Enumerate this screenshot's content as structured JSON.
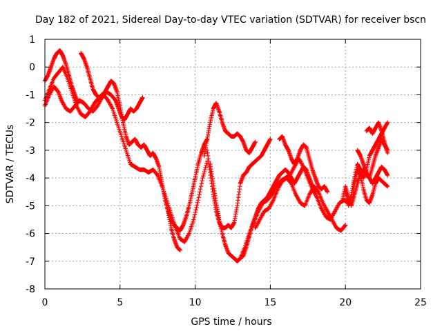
{
  "chart_data": {
    "type": "scatter",
    "title": "Day 182 of 2021, Sidereal Day-to-day VTEC variation (SDTVAR) for receiver bscn",
    "xlabel": "GPS time / hours",
    "ylabel": "SDTVAR / TECUs",
    "xlim": [
      0,
      25
    ],
    "ylim": [
      -8,
      1
    ],
    "xticks": [
      0,
      5,
      10,
      15,
      20,
      25
    ],
    "yticks": [
      -8,
      -7,
      -6,
      -5,
      -4,
      -3,
      -2,
      -1,
      0,
      1
    ],
    "grid": true,
    "marker": "plus",
    "color": "#ff0000",
    "series": [
      {
        "x": [
          0.0,
          0.3,
          0.6,
          0.9,
          1.1,
          1.4,
          1.7,
          2.0,
          2.3,
          2.6,
          2.9,
          3.2,
          3.5,
          3.8,
          4.1,
          4.4,
          4.7,
          4.9,
          5.1,
          5.3,
          5.5,
          5.7,
          5.9,
          6.1,
          6.3,
          6.5
        ],
        "y": [
          -1.4,
          -1.0,
          -0.7,
          -0.9,
          -1.2,
          -1.5,
          -1.6,
          -1.4,
          -1.2,
          -1.3,
          -1.5,
          -1.6,
          -1.4,
          -1.1,
          -0.9,
          -1.0,
          -1.2,
          -1.5,
          -1.8,
          -1.9,
          -1.7,
          -1.5,
          -1.6,
          -1.5,
          -1.3,
          -1.1
        ]
      },
      {
        "x": [
          0.0,
          0.2,
          0.4,
          0.6,
          0.8,
          1.0,
          1.2,
          1.4,
          1.6,
          1.8,
          2.0,
          2.2
        ],
        "y": [
          -0.5,
          -0.3,
          0.0,
          0.3,
          0.5,
          0.6,
          0.4,
          0.1,
          -0.3,
          -0.7,
          -1.0,
          -1.3
        ]
      },
      {
        "x": [
          2.4,
          2.6,
          2.8,
          3.0,
          3.2,
          3.4,
          3.6,
          3.8,
          4.0,
          4.2,
          4.4,
          4.6,
          4.8,
          5.0,
          5.2,
          5.4,
          5.6,
          5.8,
          6.0,
          6.2,
          6.4,
          6.6,
          6.8,
          7.0,
          7.2,
          7.4,
          7.6,
          7.8,
          8.0,
          8.2,
          8.4,
          8.6,
          8.8,
          9.0,
          9.2,
          9.4,
          9.6,
          9.8,
          10.0,
          10.2,
          10.4,
          10.6,
          10.8
        ],
        "y": [
          0.5,
          0.3,
          0.0,
          -0.4,
          -0.8,
          -1.0,
          -1.1,
          -1.0,
          -0.9,
          -0.7,
          -0.5,
          -0.6,
          -0.9,
          -1.4,
          -2.0,
          -2.5,
          -2.8,
          -2.7,
          -2.6,
          -2.8,
          -2.9,
          -2.8,
          -3.0,
          -3.2,
          -3.1,
          -3.3,
          -3.6,
          -4.2,
          -4.8,
          -5.2,
          -5.5,
          -5.7,
          -5.8,
          -5.9,
          -5.7,
          -5.4,
          -5.0,
          -4.5,
          -4.0,
          -3.5,
          -3.1,
          -2.8,
          -2.6
        ]
      },
      {
        "x": [
          0.0,
          0.3,
          0.6,
          0.9,
          1.2,
          1.5,
          1.8,
          2.1,
          2.4,
          2.7,
          3.0,
          3.3,
          3.6,
          3.9,
          4.2,
          4.5,
          4.8,
          5.1,
          5.4,
          5.7,
          6.0,
          6.3,
          6.6,
          6.9,
          7.2,
          7.5,
          7.8,
          8.1,
          8.4,
          8.7,
          9.0,
          9.3,
          9.6,
          9.9,
          10.2,
          10.5,
          10.8
        ],
        "y": [
          -1.2,
          -0.8,
          -0.4,
          -0.2,
          0.0,
          -0.4,
          -0.9,
          -1.4,
          -1.7,
          -1.8,
          -1.6,
          -1.3,
          -1.1,
          -1.0,
          -1.2,
          -1.5,
          -2.0,
          -2.5,
          -3.0,
          -3.5,
          -3.6,
          -3.7,
          -3.7,
          -3.8,
          -3.7,
          -3.9,
          -4.3,
          -4.8,
          -5.3,
          -5.8,
          -6.2,
          -6.3,
          -6.0,
          -5.5,
          -4.8,
          -4.0,
          -3.4
        ]
      },
      {
        "x": [
          8.2,
          8.4,
          8.6,
          8.8,
          9.0
        ],
        "y": [
          -5.2,
          -5.8,
          -6.2,
          -6.5,
          -6.6
        ]
      },
      {
        "x": [
          10.6,
          10.8,
          11.0,
          11.2,
          11.4,
          11.6,
          11.8,
          12.0,
          12.2,
          12.4,
          12.6,
          12.8,
          13.0,
          13.2,
          13.4,
          13.6,
          13.8,
          14.0
        ],
        "y": [
          -3.2,
          -2.6,
          -2.0,
          -1.5,
          -1.3,
          -1.6,
          -2.0,
          -2.3,
          -2.4,
          -2.5,
          -2.5,
          -2.4,
          -2.5,
          -2.7,
          -3.0,
          -3.1,
          -2.9,
          -2.7
        ]
      },
      {
        "x": [
          10.8,
          11.0,
          11.2,
          11.4,
          11.6,
          11.8,
          12.0,
          12.2,
          12.4,
          12.6,
          12.8,
          13.0,
          13.2,
          13.4,
          13.6,
          13.8,
          14.0,
          14.2,
          14.4,
          14.6,
          14.8,
          15.0
        ],
        "y": [
          -3.0,
          -3.8,
          -4.6,
          -5.2,
          -5.6,
          -5.8,
          -5.8,
          -5.7,
          -5.8,
          -5.6,
          -5.0,
          -4.2,
          -3.9,
          -3.8,
          -3.6,
          -3.5,
          -3.4,
          -3.3,
          -3.2,
          -3.0,
          -2.8,
          -2.6
        ]
      },
      {
        "x": [
          11.0,
          11.2,
          11.4,
          11.6,
          11.8,
          12.0,
          12.2,
          12.4,
          12.6,
          12.8,
          13.0,
          13.2,
          13.4,
          13.6,
          13.8,
          14.0,
          14.2,
          14.4,
          14.6,
          14.8,
          15.0,
          15.2,
          15.4,
          15.6,
          15.8,
          16.0,
          16.2,
          16.4,
          16.6,
          16.8,
          17.0,
          17.2,
          17.4,
          17.6,
          17.8,
          18.0
        ],
        "y": [
          -3.5,
          -4.2,
          -4.9,
          -5.5,
          -6.0,
          -6.4,
          -6.7,
          -6.8,
          -6.9,
          -7.0,
          -6.9,
          -6.8,
          -6.5,
          -6.1,
          -5.7,
          -5.4,
          -5.1,
          -4.9,
          -4.8,
          -4.7,
          -4.5,
          -4.3,
          -4.1,
          -3.9,
          -3.8,
          -3.7,
          -3.8,
          -4.0,
          -4.2,
          -4.0,
          -3.8,
          -3.6,
          -3.7,
          -4.0,
          -4.3,
          -4.5
        ]
      },
      {
        "x": [
          13.0,
          13.3,
          13.6,
          13.9,
          14.2,
          14.5,
          14.8,
          15.1,
          15.4,
          15.7,
          16.0,
          16.3,
          16.6,
          16.9,
          17.2,
          17.5,
          17.8,
          18.1,
          18.4,
          18.7,
          19.0,
          19.3,
          19.6,
          19.9,
          20.2
        ],
        "y": [
          -6.9,
          -6.5,
          -6.0,
          -5.6,
          -5.2,
          -4.9,
          -4.8,
          -4.6,
          -4.3,
          -4.1,
          -4.0,
          -3.9,
          -3.6,
          -3.3,
          -3.6,
          -4.0,
          -4.4,
          -4.7,
          -5.1,
          -5.4,
          -5.5,
          -5.2,
          -4.9,
          -4.8,
          -4.9
        ]
      },
      {
        "x": [
          14.0,
          14.3,
          14.6,
          14.9,
          15.2,
          15.5,
          15.8,
          16.1,
          16.4,
          16.7,
          17.0,
          17.3,
          17.6,
          17.9,
          18.2,
          18.5,
          18.8,
          19.1,
          19.4,
          19.7,
          20.0
        ],
        "y": [
          -5.8,
          -5.5,
          -5.2,
          -5.1,
          -4.8,
          -4.4,
          -4.1,
          -4.0,
          -4.2,
          -4.6,
          -4.9,
          -5.0,
          -4.6,
          -4.3,
          -4.5,
          -4.9,
          -5.2,
          -5.5,
          -5.8,
          -5.9,
          -5.7
        ]
      },
      {
        "x": [
          15.6,
          15.8,
          16.0,
          16.2,
          16.4,
          16.6,
          16.8,
          17.0,
          17.2,
          17.4,
          17.6,
          17.8,
          18.0,
          18.2,
          18.4,
          18.6,
          18.8
        ],
        "y": [
          -2.6,
          -2.5,
          -2.8,
          -3.0,
          -3.3,
          -3.5,
          -3.3,
          -3.0,
          -2.8,
          -2.9,
          -3.3,
          -3.7,
          -4.0,
          -4.3,
          -4.4,
          -4.3,
          -4.5
        ]
      },
      {
        "x": [
          19.8,
          20.0,
          20.2,
          20.4,
          20.6,
          20.8,
          21.0,
          21.2,
          21.4,
          21.6,
          21.8,
          22.0,
          22.2,
          22.4,
          22.6,
          22.8
        ],
        "y": [
          -4.8,
          -4.3,
          -4.7,
          -5.0,
          -4.2,
          -3.7,
          -3.9,
          -4.4,
          -4.8,
          -4.9,
          -4.6,
          -4.2,
          -4.0,
          -4.1,
          -4.2,
          -4.3
        ]
      },
      {
        "x": [
          20.0,
          20.2,
          20.4,
          20.6,
          20.8,
          21.0,
          21.2,
          21.4,
          21.6,
          21.8,
          22.0,
          22.2,
          22.4,
          22.6,
          22.8
        ],
        "y": [
          -4.5,
          -5.0,
          -4.6,
          -4.0,
          -3.5,
          -3.7,
          -4.0,
          -3.7,
          -3.2,
          -3.0,
          -2.8,
          -2.6,
          -2.4,
          -2.2,
          -2.0
        ]
      },
      {
        "x": [
          20.4,
          20.6,
          20.8,
          21.0,
          21.2,
          21.4,
          21.6,
          21.8,
          22.0,
          22.2,
          22.4,
          22.6,
          22.8
        ],
        "y": [
          -5.0,
          -4.6,
          -4.2,
          -3.8,
          -3.7,
          -3.9,
          -4.0,
          -3.6,
          -3.2,
          -2.9,
          -2.6,
          -2.8,
          -3.0
        ]
      },
      {
        "x": [
          20.8,
          21.0,
          21.2,
          21.4,
          21.6,
          21.8,
          22.0,
          22.2,
          22.4,
          22.6,
          22.8
        ],
        "y": [
          -3.0,
          -3.2,
          -3.5,
          -3.8,
          -4.0,
          -4.2,
          -4.0,
          -3.8,
          -3.6,
          -3.7,
          -3.9
        ]
      },
      {
        "x": [
          21.4,
          21.6,
          21.8,
          22.0,
          22.2,
          22.4,
          22.6,
          22.8
        ],
        "y": [
          -2.3,
          -2.2,
          -2.4,
          -2.2,
          -2.0,
          -2.3,
          -2.7,
          -3.1
        ]
      }
    ]
  }
}
